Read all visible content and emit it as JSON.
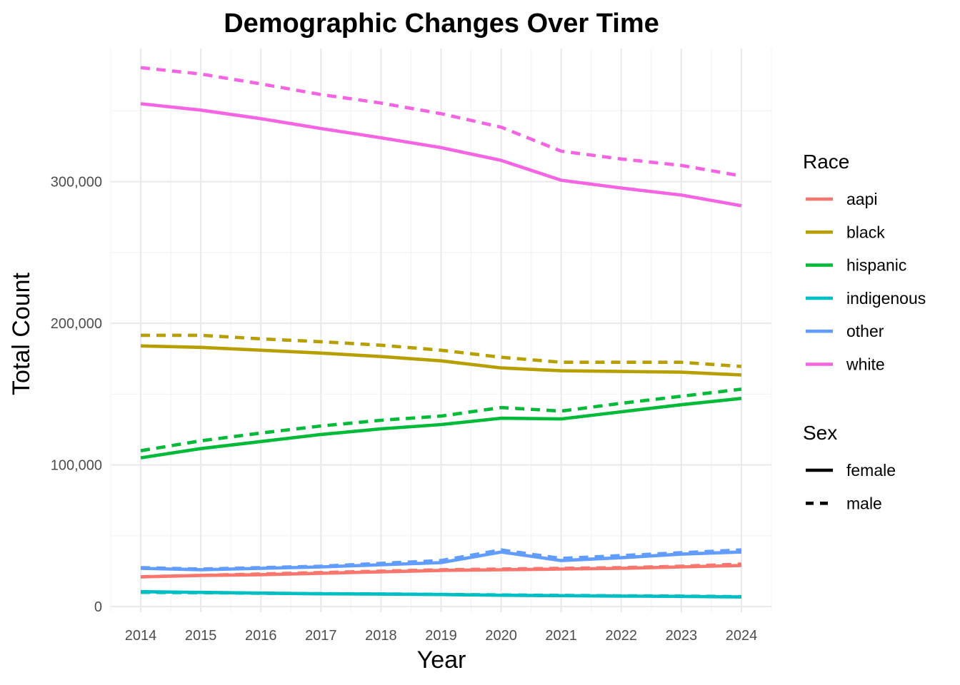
{
  "chart_data": {
    "type": "line",
    "title": "Demographic Changes Over Time",
    "xlabel": "Year",
    "ylabel": "Total Count",
    "x": [
      2014,
      2015,
      2016,
      2017,
      2018,
      2019,
      2020,
      2021,
      2022,
      2023,
      2024
    ],
    "xlim": [
      2013.5,
      2024.5
    ],
    "ylim": [
      -4000,
      394000
    ],
    "y_ticks": [
      0,
      100000,
      200000,
      300000
    ],
    "y_tick_labels": [
      "0",
      "100,000",
      "200,000",
      "300,000"
    ],
    "x_tick_labels": [
      "2014",
      "2015",
      "2016",
      "2017",
      "2018",
      "2019",
      "2020",
      "2021",
      "2022",
      "2023",
      "2024"
    ],
    "grid": true,
    "legend_position": "right",
    "legend": {
      "race_title": "Race",
      "sex_title": "Sex",
      "race_entries": [
        {
          "label": "aapi",
          "color": "#F8766D"
        },
        {
          "label": "black",
          "color": "#B79F00"
        },
        {
          "label": "hispanic",
          "color": "#00BA38"
        },
        {
          "label": "indigenous",
          "color": "#00BFC4"
        },
        {
          "label": "other",
          "color": "#619CFF"
        },
        {
          "label": "white",
          "color": "#F564E3"
        }
      ],
      "sex_entries": [
        {
          "label": "female",
          "linetype": "solid"
        },
        {
          "label": "male",
          "linetype": "dashed"
        }
      ]
    },
    "series": [
      {
        "race": "aapi",
        "sex": "female",
        "color": "#F8766D",
        "values": [
          21000,
          22000,
          22500,
          23500,
          24500,
          25500,
          26000,
          26500,
          27000,
          28000,
          29000
        ]
      },
      {
        "race": "aapi",
        "sex": "male",
        "color": "#F8766D",
        "values": [
          21000,
          22000,
          23000,
          24000,
          25000,
          26000,
          26500,
          27000,
          27500,
          28500,
          30000
        ]
      },
      {
        "race": "black",
        "sex": "female",
        "color": "#B79F00",
        "values": [
          184000,
          183000,
          181000,
          179000,
          176500,
          173500,
          168500,
          166500,
          166000,
          165500,
          163500
        ]
      },
      {
        "race": "black",
        "sex": "male",
        "color": "#B79F00",
        "values": [
          191500,
          191500,
          189000,
          187000,
          184500,
          181000,
          176000,
          172500,
          172500,
          172500,
          169500
        ]
      },
      {
        "race": "hispanic",
        "sex": "female",
        "color": "#00BA38",
        "values": [
          105000,
          111500,
          116500,
          121500,
          125500,
          128500,
          133000,
          132500,
          137500,
          142500,
          147000
        ]
      },
      {
        "race": "hispanic",
        "sex": "male",
        "color": "#00BA38",
        "values": [
          110000,
          117000,
          122500,
          127500,
          131500,
          134500,
          140500,
          138000,
          143500,
          148500,
          153500
        ]
      },
      {
        "race": "indigenous",
        "sex": "female",
        "color": "#00BFC4",
        "values": [
          10500,
          10000,
          9500,
          9000,
          8800,
          8500,
          8000,
          7700,
          7400,
          7200,
          6800
        ]
      },
      {
        "race": "indigenous",
        "sex": "male",
        "color": "#00BFC4",
        "values": [
          10000,
          9800,
          9400,
          9100,
          8900,
          8600,
          8200,
          7900,
          7600,
          7400,
          7000
        ]
      },
      {
        "race": "other",
        "sex": "female",
        "color": "#619CFF",
        "values": [
          27000,
          26000,
          27000,
          28000,
          29500,
          31000,
          38500,
          32500,
          34500,
          37000,
          38500
        ]
      },
      {
        "race": "other",
        "sex": "male",
        "color": "#619CFF",
        "values": [
          27500,
          26500,
          27500,
          28500,
          30500,
          32500,
          40000,
          34000,
          36000,
          38000,
          40000
        ]
      },
      {
        "race": "white",
        "sex": "female",
        "color": "#F564E3",
        "values": [
          355000,
          350500,
          344500,
          337500,
          331000,
          324000,
          315000,
          301000,
          295500,
          290500,
          283000
        ]
      },
      {
        "race": "white",
        "sex": "male",
        "color": "#F564E3",
        "values": [
          380500,
          376000,
          369000,
          361500,
          355500,
          348000,
          338500,
          321500,
          316000,
          311500,
          304000
        ]
      }
    ]
  }
}
